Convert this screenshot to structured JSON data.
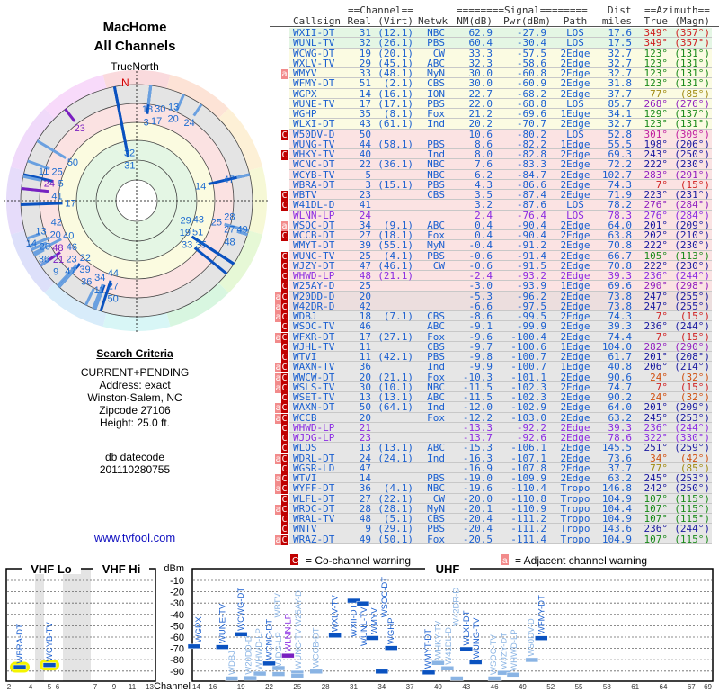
{
  "header": {
    "title": "MacHome",
    "subtitle": "All Channels"
  },
  "polar": {
    "north_label": "TrueNorth",
    "n_marker": "N"
  },
  "search": {
    "heading": "Search Criteria",
    "lines": [
      "CURRENT+PENDING",
      "Address: exact",
      "Winston-Salem, NC",
      "Zipcode 27106",
      "Height: 25.0 ft."
    ],
    "db_label": "db datecode",
    "db_value": "201110280755"
  },
  "link": "www.tvfool.com",
  "table": {
    "group_channel": "==Channel==",
    "group_signal": "========Signal========",
    "group_dist": "Dist",
    "group_azimuth": "==Azimuth==",
    "columns": [
      "Callsign",
      "Real",
      "(Virt)",
      "Netwk",
      "NM(dB)",
      "Pwr(dBm)",
      "Path",
      "miles",
      "True",
      "(Magn)"
    ],
    "rows": [
      [
        "",
        "WXII-DT",
        "31",
        "(12.1)",
        "NBC",
        "62.9",
        "-27.9",
        "LOS",
        "17.6",
        "349°",
        "(357°)",
        "green"
      ],
      [
        "",
        "WUNL-TV",
        "32",
        "(26.1)",
        "PBS",
        "60.4",
        "-30.4",
        "LOS",
        "17.5",
        "349°",
        "(357°)",
        "green"
      ],
      [
        "",
        "WCWG-DT",
        "19",
        "(20.1)",
        "CW",
        "33.3",
        "-57.5",
        "2Edge",
        "32.7",
        "123°",
        "(131°)",
        "yellow"
      ],
      [
        "",
        "WXLV-TV",
        "29",
        "(45.1)",
        "ABC",
        "32.3",
        "-58.6",
        "2Edge",
        "32.7",
        "123°",
        "(131°)",
        "yellow"
      ],
      [
        "a",
        "WMYV",
        "33",
        "(48.1)",
        "MyN",
        "30.0",
        "-60.8",
        "2Edge",
        "32.7",
        "123°",
        "(131°)",
        "yellow"
      ],
      [
        "",
        "WFMY-DT",
        "51",
        "(2.1)",
        "CBS",
        "30.0",
        "-60.9",
        "2Edge",
        "31.8",
        "123°",
        "(131°)",
        "yellow"
      ],
      [
        "",
        "WGPX",
        "14",
        "(16.1)",
        "ION",
        "22.7",
        "-68.2",
        "2Edge",
        "37.7",
        "77°",
        "(85°)",
        "yellow"
      ],
      [
        "",
        "WUNE-TV",
        "17",
        "(17.1)",
        "PBS",
        "22.0",
        "-68.8",
        "LOS",
        "85.7",
        "268°",
        "(276°)",
        "yellow"
      ],
      [
        "",
        "WGHP",
        "35",
        "(8.1)",
        "Fox",
        "21.2",
        "-69.6",
        "1Edge",
        "34.1",
        "129°",
        "(137°)",
        "yellow"
      ],
      [
        "",
        "WLXI-DT",
        "43",
        "(61.1)",
        "Ind",
        "20.2",
        "-70.7",
        "2Edge",
        "32.7",
        "123°",
        "(131°)",
        "yellow"
      ],
      [
        "C",
        "W50DV-D",
        "50",
        "",
        "",
        "10.6",
        "-80.2",
        "LOS",
        "52.8",
        "301°",
        "(309°)",
        "pink"
      ],
      [
        "",
        "WUNG-TV",
        "44",
        "(58.1)",
        "PBS",
        "8.6",
        "-82.2",
        "1Edge",
        "55.5",
        "198°",
        "(206°)",
        "pink"
      ],
      [
        "C",
        "WHKY-TV",
        "40",
        "",
        "Ind",
        "8.0",
        "-82.8",
        "2Edge",
        "69.3",
        "243°",
        "(250°)",
        "pink"
      ],
      [
        "",
        "WCNC-DT",
        "22",
        "(36.1)",
        "NBC",
        "7.6",
        "-83.3",
        "2Edge",
        "72.2",
        "222°",
        "(230°)",
        "pink"
      ],
      [
        "",
        "WCYB-TV",
        "5",
        "",
        "NBC",
        "6.2",
        "-84.7",
        "2Edge",
        "102.7",
        "283°",
        "(291°)",
        "pink"
      ],
      [
        "",
        "WBRA-DT",
        "3",
        "(15.1)",
        "PBS",
        "4.3",
        "-86.6",
        "2Edge",
        "74.3",
        "7°",
        "(15°)",
        "pink"
      ],
      [
        "C",
        "WBTV",
        "23",
        "",
        "CBS",
        "3.5",
        "-87.4",
        "2Edge",
        "71.9",
        "223°",
        "(231°)",
        "pink"
      ],
      [
        "C",
        "W41DL-D",
        "41",
        "",
        "",
        "3.2",
        "-87.6",
        "LOS",
        "78.2",
        "276°",
        "(284°)",
        "pink"
      ],
      [
        "",
        "WLNN-LP",
        "24",
        "",
        "",
        "2.4",
        "-76.4",
        "LOS",
        "78.3",
        "276°",
        "(284°)",
        "pink"
      ],
      [
        "a",
        "WSOC-DT",
        "34",
        "(9.1)",
        "ABC",
        "0.4",
        "-90.4",
        "2Edge",
        "64.0",
        "201°",
        "(209°)",
        "pink"
      ],
      [
        "C",
        "WCCB-DT",
        "27",
        "(18.1)",
        "Fox",
        "0.4",
        "-90.4",
        "2Edge",
        "63.8",
        "202°",
        "(210°)",
        "pink"
      ],
      [
        "",
        "WMYT-DT",
        "39",
        "(55.1)",
        "MyN",
        "-0.4",
        "-91.2",
        "2Edge",
        "70.8",
        "222°",
        "(230°)",
        "pink"
      ],
      [
        "C",
        "WUNC-TV",
        "25",
        "(4.1)",
        "PBS",
        "-0.6",
        "-91.4",
        "2Edge",
        "66.7",
        "105°",
        "(113°)",
        "pink"
      ],
      [
        "C",
        "WJZY-DT",
        "47",
        "(46.1)",
        "CW",
        "-0.6",
        "-91.5",
        "2Edge",
        "70.8",
        "222°",
        "(230°)",
        "pink"
      ],
      [
        "C",
        "WHWD-LP",
        "48",
        "(21.1)",
        "",
        "-2.4",
        "-93.2",
        "2Edge",
        "39.3",
        "236°",
        "(244°)",
        "pink"
      ],
      [
        "C",
        "W25AY-D",
        "25",
        "",
        "",
        "-3.0",
        "-93.9",
        "1Edge",
        "69.6",
        "290°",
        "(298°)",
        "pink"
      ],
      [
        "aC",
        "W20DD-D",
        "20",
        "",
        "",
        "-5.3",
        "-96.2",
        "2Edge",
        "73.8",
        "247°",
        "(255°)",
        "pinkgray"
      ],
      [
        "aC",
        "W42DR-D",
        "42",
        "",
        "",
        "-6.6",
        "-97.5",
        "2Edge",
        "73.8",
        "247°",
        "(255°)",
        "pinkgray"
      ],
      [
        "aC",
        "WDBJ",
        "18",
        "(7.1)",
        "CBS",
        "-8.6",
        "-99.5",
        "2Edge",
        "74.3",
        "7°",
        "(15°)",
        "gray"
      ],
      [
        "C",
        "WSOC-TV",
        "46",
        "",
        "ABC",
        "-9.1",
        "-99.9",
        "2Edge",
        "39.3",
        "236°",
        "(244°)",
        "gray"
      ],
      [
        "aC",
        "WFXR-DT",
        "17",
        "(27.1)",
        "Fox",
        "-9.6",
        "-100.4",
        "2Edge",
        "74.4",
        "7°",
        "(15°)",
        "gray"
      ],
      [
        "C",
        "WJHL-TV",
        "11",
        "",
        "CBS",
        "-9.7",
        "-100.6",
        "1Edge",
        "104.0",
        "282°",
        "(290°)",
        "gray"
      ],
      [
        "C",
        "WTVI",
        "11",
        "(42.1)",
        "PBS",
        "-9.8",
        "-100.7",
        "2Edge",
        "61.7",
        "201°",
        "(208°)",
        "gray"
      ],
      [
        "aC",
        "WAXN-TV",
        "36",
        "",
        "Ind",
        "-9.9",
        "-100.7",
        "1Edge",
        "40.8",
        "206°",
        "(214°)",
        "gray"
      ],
      [
        "aC",
        "WWCW-DT",
        "20",
        "(21.1)",
        "Fox",
        "-10.3",
        "-101.1",
        "2Edge",
        "90.6",
        "24°",
        "(32°)",
        "gray"
      ],
      [
        "aC",
        "WSLS-TV",
        "30",
        "(10.1)",
        "NBC",
        "-11.5",
        "-102.3",
        "2Edge",
        "74.7",
        "7°",
        "(15°)",
        "gray"
      ],
      [
        "C",
        "WSET-TV",
        "13",
        "(13.1)",
        "ABC",
        "-11.5",
        "-102.3",
        "2Edge",
        "90.2",
        "24°",
        "(32°)",
        "gray"
      ],
      [
        "aC",
        "WAXN-DT",
        "50",
        "(64.1)",
        "Ind",
        "-12.0",
        "-102.9",
        "2Edge",
        "64.0",
        "201°",
        "(209°)",
        "gray"
      ],
      [
        "aC",
        "WCCB",
        "20",
        "",
        "Fox",
        "-12.2",
        "-103.0",
        "2Edge",
        "63.2",
        "245°",
        "(253°)",
        "gray"
      ],
      [
        "C",
        "WHWD-LP",
        "21",
        "",
        "",
        "-13.3",
        "-92.2",
        "2Edge",
        "39.3",
        "236°",
        "(244°)",
        "gray"
      ],
      [
        "C",
        "WJDG-LP",
        "23",
        "",
        "",
        "-13.7",
        "-92.6",
        "2Edge",
        "78.6",
        "322°",
        "(330°)",
        "gray"
      ],
      [
        "C",
        "WLOS",
        "13",
        "(13.1)",
        "ABC",
        "-15.3",
        "-106.1",
        "2Edge",
        "145.5",
        "251°",
        "(259°)",
        "gray"
      ],
      [
        "aC",
        "WDRL-DT",
        "24",
        "(24.1)",
        "Ind",
        "-16.3",
        "-107.1",
        "2Edge",
        "73.6",
        "34°",
        "(42°)",
        "gray"
      ],
      [
        "C",
        "WGSR-LD",
        "47",
        "",
        "",
        "-16.9",
        "-107.8",
        "2Edge",
        "37.7",
        "77°",
        "(85°)",
        "gray"
      ],
      [
        "aC",
        "WTVI",
        "14",
        "",
        "PBS",
        "-19.0",
        "-109.9",
        "2Edge",
        "63.2",
        "245°",
        "(253°)",
        "gray"
      ],
      [
        "aC",
        "WYFF-DT",
        "36",
        "(4.1)",
        "NBC",
        "-19.6",
        "-110.4",
        "Tropo",
        "146.8",
        "242°",
        "(250°)",
        "gray"
      ],
      [
        "C",
        "WLFL-DT",
        "27",
        "(22.1)",
        "CW",
        "-20.0",
        "-110.8",
        "Tropo",
        "104.9",
        "107°",
        "(115°)",
        "gray"
      ],
      [
        "aC",
        "WRDC-DT",
        "28",
        "(28.1)",
        "MyN",
        "-20.1",
        "-110.9",
        "Tropo",
        "104.4",
        "107°",
        "(115°)",
        "gray"
      ],
      [
        "C",
        "WRAL-TV",
        "48",
        "(5.1)",
        "CBS",
        "-20.4",
        "-111.2",
        "Tropo",
        "104.9",
        "107°",
        "(115°)",
        "gray"
      ],
      [
        "C",
        "WNTV",
        "9",
        "(29.1)",
        "PBS",
        "-20.4",
        "-111.2",
        "Tropo",
        "143.6",
        "236°",
        "(244°)",
        "gray"
      ],
      [
        "aC",
        "WRAZ-DT",
        "49",
        "(50.1)",
        "Fox",
        "-20.5",
        "-111.4",
        "Tropo",
        "104.9",
        "107°",
        "(115°)",
        "gray"
      ]
    ],
    "band_colors": {
      "green": "#e4f6e4",
      "yellow": "#fbfbe2",
      "pink": "#fbe3e3",
      "pinkgray": "#ecdede",
      "gray": "#e6e6e6"
    },
    "text_color": "#1a5fd0",
    "lp_color": "#8a2be2"
  },
  "legend": {
    "co_flag": "C",
    "co_text": "= Co-channel warning",
    "adj_flag": "a",
    "adj_text": "= Adjacent channel warning"
  },
  "chart_data": {
    "type": "scatter",
    "ylabel": "dBm",
    "xlabel": "Channel",
    "ylim": [
      0,
      -100
    ],
    "y_ticks": [
      "-10",
      "-20",
      "-30",
      "-40",
      "-50",
      "-60",
      "-70",
      "-80",
      "-90"
    ],
    "panels": [
      {
        "name": "VHF Lo",
        "x_ticks": [
          "2",
          "4",
          "5",
          "6"
        ]
      },
      {
        "name": "VHF Hi",
        "x_ticks": [
          "7",
          "9",
          "11",
          "13"
        ]
      },
      {
        "name": "UHF",
        "x_ticks": [
          "14",
          "16",
          "19",
          "22",
          "25",
          "28",
          "31",
          "34",
          "37",
          "40",
          "43",
          "46",
          "49",
          "52",
          "55",
          "58",
          "61",
          "64",
          "67",
          "69"
        ]
      }
    ]
  }
}
